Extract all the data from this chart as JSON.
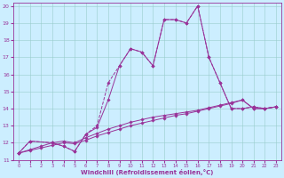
{
  "xlabel": "Windchill (Refroidissement éolien,°C)",
  "bg_color": "#cceeff",
  "line_color": "#993399",
  "xlim": [
    -0.5,
    23.5
  ],
  "ylim": [
    11,
    20.2
  ],
  "xticks": [
    0,
    1,
    2,
    3,
    4,
    5,
    6,
    7,
    8,
    9,
    10,
    11,
    12,
    13,
    14,
    15,
    16,
    17,
    18,
    19,
    20,
    21,
    22,
    23
  ],
  "yticks": [
    11,
    12,
    13,
    14,
    15,
    16,
    17,
    18,
    19,
    20
  ],
  "grid_color": "#99cccc",
  "line1_x": [
    0,
    1,
    3,
    4,
    5,
    6,
    7,
    8,
    9,
    10,
    11,
    12,
    13,
    14,
    15,
    16,
    17,
    18,
    19,
    20,
    21,
    22,
    23
  ],
  "line1_y": [
    11.4,
    12.1,
    12.0,
    11.8,
    11.5,
    12.5,
    13.0,
    15.5,
    16.5,
    17.5,
    17.3,
    16.5,
    19.2,
    19.2,
    19.0,
    20.0,
    17.0,
    15.5,
    14.0,
    14.0,
    14.1,
    14.0,
    14.1
  ],
  "line2_x": [
    0,
    1,
    3,
    4,
    5,
    6,
    7,
    8,
    9,
    10,
    11,
    12,
    13,
    14,
    15,
    16,
    17,
    18,
    19,
    20,
    21,
    22,
    23
  ],
  "line2_y": [
    11.4,
    12.1,
    12.0,
    11.8,
    11.5,
    12.5,
    12.9,
    14.5,
    16.5,
    17.5,
    17.3,
    16.5,
    19.2,
    19.2,
    19.0,
    20.0,
    17.0,
    15.5,
    14.0,
    14.0,
    14.1,
    14.0,
    14.1
  ],
  "line3_x": [
    0,
    1,
    2,
    3,
    4,
    5,
    6,
    7,
    8,
    9,
    10,
    11,
    12,
    13,
    14,
    15,
    16,
    17,
    18,
    19,
    20,
    21,
    22,
    23
  ],
  "line3_y": [
    11.4,
    11.55,
    11.7,
    11.85,
    12.0,
    11.95,
    12.15,
    12.4,
    12.6,
    12.8,
    13.0,
    13.15,
    13.3,
    13.45,
    13.6,
    13.7,
    13.85,
    14.0,
    14.15,
    14.3,
    14.5,
    14.0,
    14.0,
    14.1
  ],
  "line4_x": [
    0,
    1,
    2,
    3,
    4,
    5,
    6,
    7,
    8,
    9,
    10,
    11,
    12,
    13,
    14,
    15,
    16,
    17,
    18,
    19,
    20,
    21,
    22,
    23
  ],
  "line4_y": [
    11.4,
    11.6,
    11.8,
    12.0,
    12.1,
    12.0,
    12.3,
    12.55,
    12.8,
    13.0,
    13.2,
    13.35,
    13.5,
    13.6,
    13.7,
    13.8,
    13.9,
    14.05,
    14.2,
    14.35,
    14.5,
    14.0,
    14.0,
    14.1
  ]
}
